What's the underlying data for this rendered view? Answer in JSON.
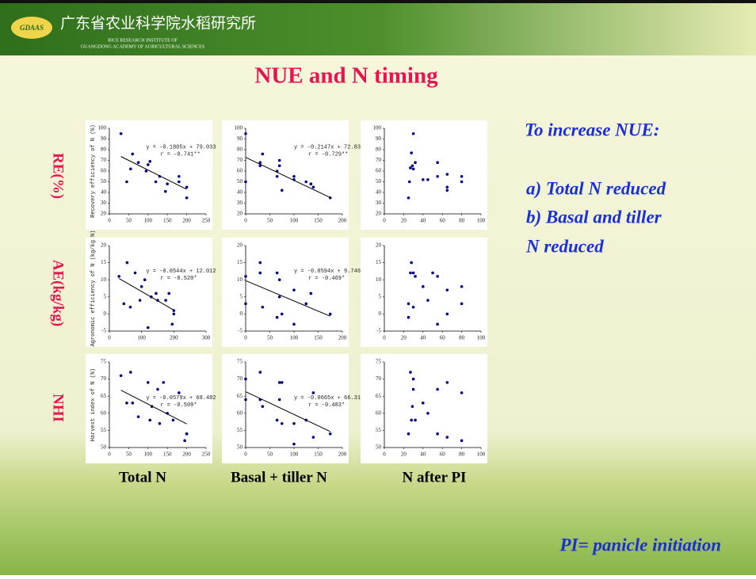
{
  "header": {
    "name_cn": "广东省农业科学院水稻研究所",
    "name_en": [
      "RICE RESEARCH INSTITUTE OF",
      "GUANGDONG ACADEMY OF AGRICULTURAL SCIENCES"
    ],
    "logo": "GDAAS"
  },
  "title": "NUE and N timing",
  "row_labels": [
    "RE(%)",
    "AE(kg/kg)",
    "NHI"
  ],
  "col_labels": [
    "Total N",
    "Basal + tiller N",
    "N after PI"
  ],
  "notes": {
    "heading": "To increase NUE:",
    "lines": [
      "a) Total N reduced",
      "b) Basal and tiller",
      "N reduced"
    ]
  },
  "footnote": "PI= panicle initiation",
  "chart_data": [
    {
      "type": "scatter",
      "color": "#000080",
      "ylabel": "Recovery efficiency of N (%)",
      "xlim": [
        0,
        250
      ],
      "xticks": [
        0,
        50,
        100,
        150,
        200,
        250
      ],
      "ylim": [
        20,
        100
      ],
      "yticks": [
        20,
        30,
        40,
        50,
        60,
        70,
        80,
        90,
        100
      ],
      "x": [
        30,
        45,
        55,
        60,
        75,
        95,
        100,
        105,
        120,
        130,
        145,
        150,
        180,
        180,
        200,
        200
      ],
      "values": [
        95,
        50,
        62,
        76,
        68,
        60,
        66,
        69,
        50,
        55,
        41,
        48,
        55,
        50,
        45,
        35
      ],
      "trend": {
        "slope": -0.1805,
        "intercept": 79.033,
        "equation": "y = -0.1805x + 79.033",
        "r_label": "r = -0.741**"
      }
    },
    {
      "type": "scatter",
      "color": "#000080",
      "xlim": [
        0,
        200
      ],
      "xticks": [
        0,
        50,
        100,
        150,
        200
      ],
      "ylim": [
        20,
        100
      ],
      "yticks": [
        20,
        30,
        40,
        50,
        60,
        70,
        80,
        90,
        100
      ],
      "x": [
        0,
        0,
        30,
        30,
        35,
        65,
        65,
        70,
        70,
        75,
        100,
        100,
        125,
        135,
        140,
        175
      ],
      "values": [
        50,
        95,
        68,
        65,
        76,
        55,
        60,
        70,
        65,
        42,
        52,
        55,
        50,
        48,
        45,
        35
      ],
      "trend": {
        "slope": -0.2147,
        "intercept": 72.834,
        "equation": "y = -0.2147x + 72.834",
        "r_label": "r = -0.729**"
      }
    },
    {
      "type": "scatter",
      "color": "#000080",
      "xlim": [
        0,
        100
      ],
      "xticks": [
        0,
        20,
        40,
        60,
        80,
        100
      ],
      "ylim": [
        20,
        100
      ],
      "yticks": [
        20,
        30,
        40,
        50,
        60,
        70,
        80,
        90,
        100
      ],
      "x": [
        25,
        26,
        27,
        28,
        29,
        30,
        30,
        32,
        40,
        45,
        55,
        55,
        65,
        65,
        65,
        80,
        80
      ],
      "values": [
        35,
        50,
        63,
        77,
        65,
        62,
        95,
        68,
        52,
        52,
        68,
        55,
        57,
        45,
        42,
        55,
        50
      ]
    },
    {
      "type": "scatter",
      "color": "#000080",
      "ylabel": "Agronomic efficiency of N (kg/kg N)",
      "xlim": [
        0,
        300
      ],
      "xticks": [
        0,
        100,
        200,
        300
      ],
      "ylim": [
        -5,
        20
      ],
      "yticks": [
        -5,
        0,
        5,
        10,
        15,
        20
      ],
      "x": [
        30,
        45,
        55,
        65,
        80,
        95,
        100,
        110,
        120,
        130,
        145,
        150,
        175,
        185,
        195,
        200,
        200
      ],
      "values": [
        11,
        3,
        15,
        2,
        12,
        4,
        8,
        10,
        -4,
        5,
        6,
        4,
        4,
        6,
        -3,
        1,
        0
      ],
      "trend": {
        "slope": -0.0544,
        "intercept": 12.012,
        "equation": "y = -0.0544x + 12.012",
        "r_label": "r = -0.520*"
      }
    },
    {
      "type": "scatter",
      "color": "#000080",
      "xlim": [
        0,
        200
      ],
      "xticks": [
        0,
        50,
        100,
        150,
        200
      ],
      "ylim": [
        -5,
        20
      ],
      "yticks": [
        -5,
        0,
        5,
        10,
        15,
        20
      ],
      "x": [
        0,
        0,
        30,
        30,
        35,
        65,
        65,
        70,
        70,
        75,
        100,
        100,
        125,
        135,
        175
      ],
      "values": [
        3,
        11,
        12,
        15,
        2,
        12,
        -1,
        10,
        5,
        0,
        7,
        -3,
        3,
        6,
        0
      ],
      "trend": {
        "slope": -0.0594,
        "intercept": 9.7466,
        "equation": "y = -0.0594x + 9.7466",
        "r_label": "r = -0.469*"
      }
    },
    {
      "type": "scatter",
      "color": "#000080",
      "xlim": [
        0,
        100
      ],
      "xticks": [
        0,
        20,
        40,
        60,
        80,
        100
      ],
      "ylim": [
        -5,
        20
      ],
      "yticks": [
        -5,
        0,
        5,
        10,
        15,
        20
      ],
      "x": [
        25,
        25,
        27,
        28,
        30,
        30,
        32,
        40,
        45,
        50,
        55,
        55,
        65,
        65,
        80,
        80
      ],
      "values": [
        -1,
        3,
        12,
        15,
        12,
        2,
        11,
        8,
        4,
        12,
        -3,
        11,
        0,
        7,
        3,
        8
      ]
    },
    {
      "type": "scatter",
      "color": "#000080",
      "ylabel": "Harvest index of N (%)",
      "xlim": [
        0,
        250
      ],
      "xticks": [
        0,
        50,
        100,
        150,
        200,
        250
      ],
      "ylim": [
        50,
        75
      ],
      "yticks": [
        50,
        55,
        60,
        65,
        70,
        75
      ],
      "x": [
        30,
        45,
        55,
        60,
        75,
        100,
        105,
        110,
        125,
        130,
        140,
        150,
        165,
        180,
        195,
        200,
        200
      ],
      "values": [
        71,
        63,
        72,
        63,
        59,
        69,
        58,
        62,
        67,
        57,
        69,
        60,
        58,
        66,
        52,
        54,
        54
      ],
      "trend": {
        "slope": -0.0579,
        "intercept": 68.482,
        "equation": "y = -0.0579x + 68.482",
        "r_label": "r = -0.509*"
      }
    },
    {
      "type": "scatter",
      "color": "#000080",
      "xlim": [
        0,
        200
      ],
      "xticks": [
        0,
        50,
        100,
        150,
        200
      ],
      "ylim": [
        50,
        75
      ],
      "yticks": [
        50,
        55,
        60,
        65,
        70,
        75
      ],
      "x": [
        0,
        0,
        30,
        30,
        35,
        65,
        70,
        70,
        75,
        75,
        100,
        100,
        125,
        140,
        140,
        175
      ],
      "values": [
        64,
        70,
        64,
        72,
        62,
        58,
        64,
        69,
        57,
        69,
        57,
        51,
        58,
        66,
        53,
        54
      ],
      "trend": {
        "slope": -0.0665,
        "intercept": 66.314,
        "equation": "y = -0.0665x + 66.314",
        "r_label": "r = -0.483*"
      }
    },
    {
      "type": "scatter",
      "color": "#000080",
      "xlim": [
        0,
        100
      ],
      "xticks": [
        0,
        20,
        40,
        60,
        80,
        100
      ],
      "ylim": [
        50,
        75
      ],
      "yticks": [
        50,
        55,
        60,
        65,
        70,
        75
      ],
      "x": [
        25,
        27,
        28,
        29,
        30,
        30,
        32,
        40,
        45,
        55,
        55,
        65,
        65,
        80,
        80
      ],
      "values": [
        54,
        72,
        58,
        62,
        70,
        67,
        58,
        63,
        60,
        67,
        54,
        69,
        53,
        66,
        52
      ]
    }
  ]
}
